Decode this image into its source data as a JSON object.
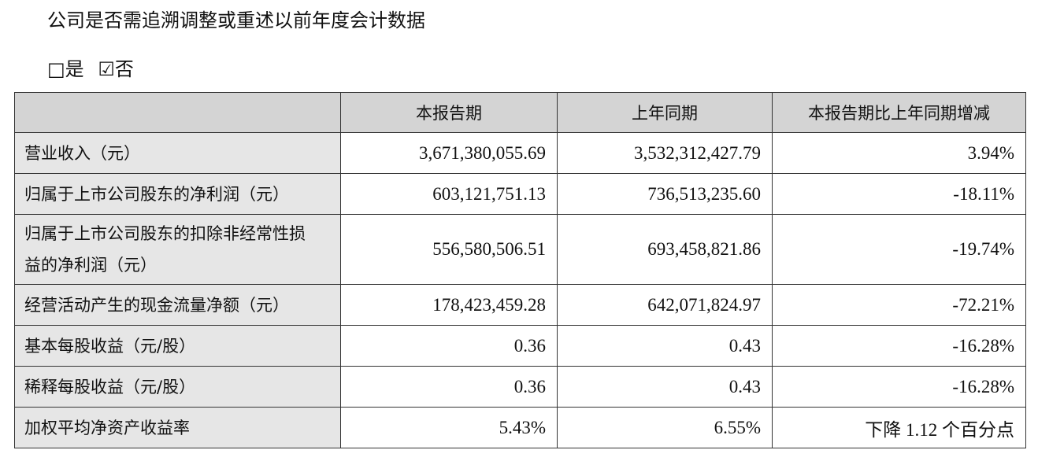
{
  "header": {
    "title": "公司是否需追溯调整或重述以前年度会计数据",
    "options": [
      "□是",
      "☑否"
    ]
  },
  "table": {
    "columns": [
      "",
      "本报告期",
      "上年同期",
      "本报告期比上年同期增减"
    ],
    "rows": [
      [
        "营业收入（元）",
        "3,671,380,055.69",
        "3,532,312,427.79",
        "3.94%"
      ],
      [
        "归属于上市公司股东的净利润（元）",
        "603,121,751.13",
        "736,513,235.60",
        "-18.11%"
      ],
      [
        "归属于上市公司股东的扣除非经常性损益的净利润（元）",
        "556,580,506.51",
        "693,458,821.86",
        "-19.74%"
      ],
      [
        "经营活动产生的现金流量净额（元）",
        "178,423,459.28",
        "642,071,824.97",
        "-72.21%"
      ],
      [
        "基本每股收益（元/股）",
        "0.36",
        "0.43",
        "-16.28%"
      ],
      [
        "稀释每股收益（元/股）",
        "0.36",
        "0.43",
        "-16.28%"
      ],
      [
        "加权平均净资产收益率",
        "5.43%",
        "6.55%",
        "下降 1.12 个百分点"
      ]
    ]
  }
}
